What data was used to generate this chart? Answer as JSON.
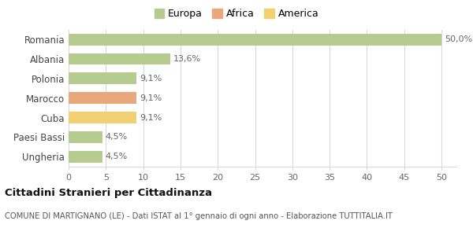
{
  "categories": [
    "Romania",
    "Albania",
    "Polonia",
    "Marocco",
    "Cuba",
    "Paesi Bassi",
    "Ungheria"
  ],
  "values": [
    50.0,
    13.6,
    9.1,
    9.1,
    9.1,
    4.5,
    4.5
  ],
  "labels": [
    "50,0%",
    "13,6%",
    "9,1%",
    "9,1%",
    "9,1%",
    "4,5%",
    "4,5%"
  ],
  "colors": [
    "#b5cc8e",
    "#b5cc8e",
    "#b5cc8e",
    "#e8a87c",
    "#f0d070",
    "#b5cc8e",
    "#b5cc8e"
  ],
  "legend": [
    {
      "label": "Europa",
      "color": "#b5cc8e"
    },
    {
      "label": "Africa",
      "color": "#e8a87c"
    },
    {
      "label": "America",
      "color": "#f0d070"
    }
  ],
  "xlim": [
    0,
    52
  ],
  "xticks": [
    0,
    5,
    10,
    15,
    20,
    25,
    30,
    35,
    40,
    45,
    50
  ],
  "title": "Cittadini Stranieri per Cittadinanza",
  "subtitle": "COMUNE DI MARTIGNANO (LE) - Dati ISTAT al 1° gennaio di ogni anno - Elaborazione TUTTITALIA.IT",
  "background_color": "#ffffff",
  "grid_color": "#d8d8d8",
  "bar_height": 0.6,
  "label_fontsize": 8,
  "ytick_fontsize": 8.5,
  "xtick_fontsize": 8
}
